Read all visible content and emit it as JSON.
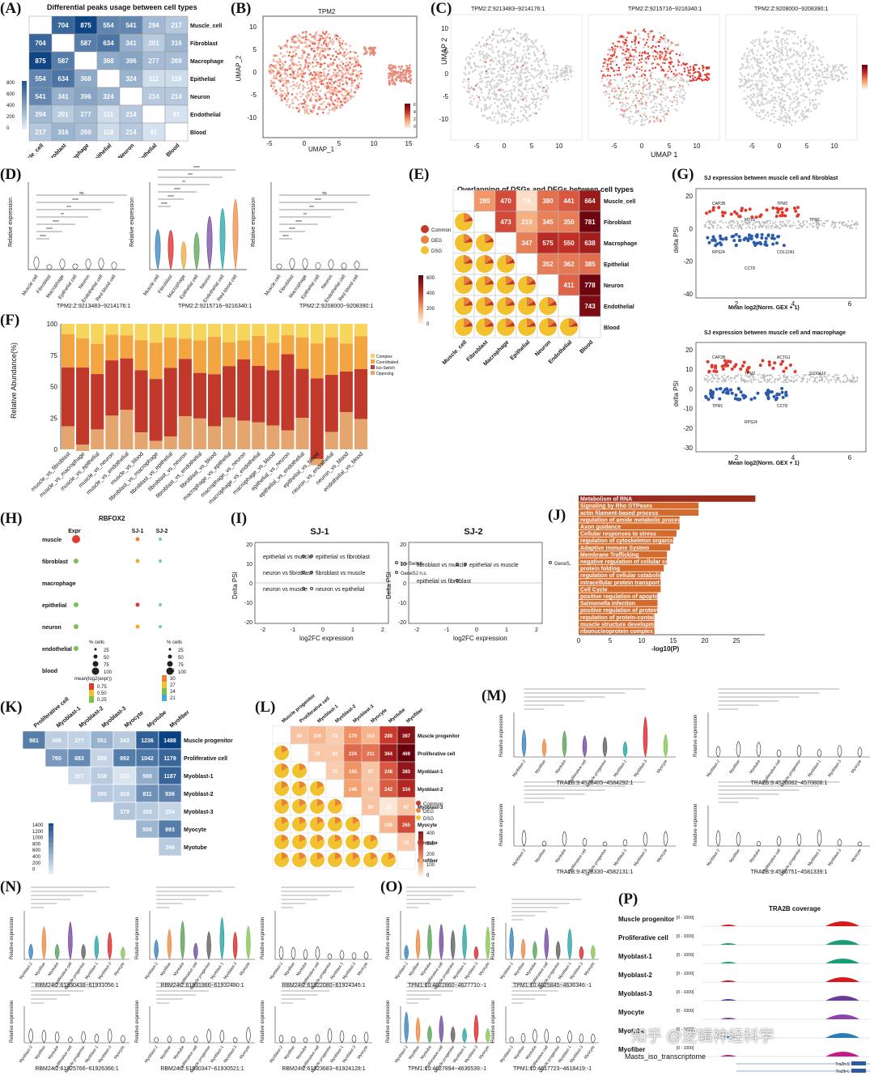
{
  "panels": {
    "A": {
      "label": "(A)",
      "title": "Differential peaks usage between cell types",
      "rows": [
        "Muscle_cell",
        "Fibroblast",
        "Macrophage",
        "Epithelial",
        "Neuron",
        "Endothelial",
        "Blood"
      ],
      "matrix": [
        [
          null,
          704,
          875,
          554,
          541,
          294,
          217
        ],
        [
          704,
          null,
          587,
          634,
          341,
          201,
          316
        ],
        [
          875,
          587,
          null,
          368,
          396,
          277,
          269
        ],
        [
          554,
          634,
          368,
          null,
          324,
          111,
          118
        ],
        [
          541,
          341,
          396,
          324,
          null,
          214,
          214
        ],
        [
          294,
          201,
          277,
          111,
          214,
          null,
          91
        ],
        [
          217,
          316,
          269,
          118,
          214,
          91,
          null
        ]
      ],
      "scale": [
        "800",
        "600",
        "400",
        "200",
        "0"
      ]
    },
    "B": {
      "label": "(B)",
      "title": "TPM2",
      "xlabel": "UMAP_1",
      "ylabel": "UMAP_2",
      "xticks": [
        "-5",
        "0",
        "5",
        "10",
        "15"
      ],
      "yticks": [
        "10",
        "5",
        "0",
        "-5",
        "-10"
      ],
      "scale": [
        "6",
        "4",
        "2",
        "0"
      ]
    },
    "C": {
      "label": "(C)",
      "titles": [
        "TPM2:Z:9213483~9214176:1",
        "TPM2:Z:9215716~9216340:1",
        "TPM2:Z:9208000~9208390:1"
      ],
      "xlabel": "UMAP 1",
      "ylabel": "UMAP 2",
      "xticks": [
        "-5",
        "0",
        "5",
        "10"
      ],
      "yticks": [
        "10",
        "5",
        "0",
        "-5",
        "-10"
      ],
      "scale": [
        "6",
        "4",
        "2",
        "0"
      ]
    },
    "D": {
      "label": "(D)",
      "ylabel": "Relative expression",
      "groups": [
        "Muscle cell",
        "Fibroblast",
        "Macrophage",
        "Epithelial cell",
        "Neuron",
        "Endothelial cell",
        "Red blood cell"
      ],
      "sig": [
        "****",
        "****",
        "****",
        "**",
        "***",
        "****",
        "ns"
      ],
      "subtitles": [
        "TPM2:Z:9213483~9214176:1",
        "TPM2:Z:9215716~9216340:1",
        "TPM2:Z:9208000~9208390:1"
      ]
    },
    "E": {
      "label": "(E)",
      "title": "Overlapping of DSGs and DEGs between cell types",
      "rows": [
        "Muscle_cell",
        "Fibroblast",
        "Macrophage",
        "Epithelial",
        "Neuron",
        "Endothelial",
        "Blood"
      ],
      "upper": [
        [
          null,
          289,
          470,
          74,
          380,
          441,
          664
        ],
        [
          null,
          null,
          473,
          219,
          345,
          350,
          781
        ],
        [
          null,
          null,
          null,
          347,
          575,
          550,
          638
        ],
        [
          null,
          null,
          null,
          null,
          352,
          362,
          385
        ],
        [
          null,
          null,
          null,
          null,
          null,
          411,
          778
        ],
        [
          null,
          null,
          null,
          null,
          null,
          null,
          743
        ],
        [
          null,
          null,
          null,
          null,
          null,
          null,
          null
        ]
      ],
      "legend": [
        "Common",
        "DEG",
        "DSG"
      ],
      "scale": [
        "600",
        "400",
        "200",
        "0"
      ]
    },
    "F": {
      "label": "(F)",
      "ylabel": "Relative Abundance(%)",
      "yticks": [
        "100",
        "75",
        "50",
        "25",
        "0"
      ],
      "legend": [
        "Complex",
        "Coordinated",
        "Iso-Switch",
        "Opposing"
      ],
      "categories": [
        "muscle_vs_fibroblast",
        "muscle_vs_macrophage",
        "muscle_vs_epithelial",
        "muscle_vs_neuron",
        "muscle_vs_endothelial",
        "muscle_vs_blood",
        "fibroblast_vs_macrophage",
        "fibroblast_vs_epithelial",
        "fibroblast_vs_neuron",
        "fibroblast_vs_endothelial",
        "fibroblast_vs_blood",
        "macrophage_vs_epithelial",
        "macrophage_vs_neuron",
        "macrophage_vs_endothelial",
        "macrophage_vs_blood",
        "epithelial_vs_neuron",
        "epithelial_vs_endothelial",
        "epithelial_vs_blood",
        "neuron_vs_endothelial",
        "neuron_vs_blood",
        "endothelial_vs_blood"
      ]
    },
    "G": {
      "label": "(G)",
      "title1": "SJ expression between muscle cell and fibroblast",
      "title2": "SJ expression between muscle cell and macrophage",
      "xlabel": "Mean log2(Norm. GEX + 1)",
      "ylabel": "delta PSI",
      "yticks1": [
        "20",
        "0",
        "-20",
        "-40"
      ],
      "yticks2": [
        "20",
        "10",
        "0",
        "-10",
        "-20",
        "-30"
      ],
      "xticks": [
        "2",
        "4",
        "6"
      ],
      "genes1": [
        "CAP2B",
        "MYL6",
        "TPM2",
        "TPM1",
        "RPS24",
        "CCT8",
        "COL12A1"
      ],
      "genes2": [
        "CAP2B",
        "TPM2",
        "ACTG1",
        "S100A10",
        "TPM1",
        "RPS24",
        "CCT8"
      ]
    },
    "H": {
      "label": "(H)",
      "title": "RBFOX2",
      "cols": [
        "Expr",
        "SJ-1",
        "SJ-2"
      ],
      "rows": [
        "muscle",
        "fibroblast",
        "macrophage",
        "epithelial",
        "neuron",
        "endothelial",
        "blood"
      ],
      "legend_cells": "% cells",
      "size_legend": [
        "25",
        "50",
        "75",
        "100"
      ],
      "color_legend_title": "mean(log2(expr))",
      "color_legend": [
        "0.75",
        "0.50",
        "0.25"
      ],
      "psi_title": "PSI",
      "psi_legend": [
        "30",
        "27",
        "24",
        "21"
      ]
    },
    "I": {
      "label": "(I)",
      "titles": [
        "SJ-1",
        "SJ-2"
      ],
      "xlabel": "log2FC expression",
      "ylabel": "Delta PSI",
      "yticks": [
        "20",
        "10",
        "0",
        "-10",
        "-20"
      ],
      "xticks": [
        "-2",
        "-1",
        "0",
        "1",
        "2"
      ],
      "annot1": [
        "epithelial vs muscle",
        "epithelial vs fibroblast",
        "neuron vs fibroblast",
        "fibroblast vs muscle",
        "neuron vs muscle",
        "neuron vs epithelial"
      ],
      "legend1": [
        "Iso-Switch",
        "GeneSJ n.s."
      ],
      "annot2": [
        "fibroblast vs muscle",
        "epithelial vs muscle",
        "epithelial vs fibroblast"
      ],
      "legend2": [
        "GeneSJ n.s."
      ]
    },
    "J": {
      "label": "(J)",
      "xlabel": "-log10(P)",
      "xticks": [
        "0",
        "5",
        "10",
        "15",
        "20",
        "25"
      ],
      "terms": [
        "Metabolism of RNA",
        "Signaling by Rho GTPases",
        "actin filament-based process",
        "regulation of amide metabolic process",
        "Axon guidance",
        "Cellular responses to stress",
        "regulation of cytoskeleton organization",
        "Adaptive Immune System",
        "Membrane Trafficking",
        "negative regulation of cellular component organization",
        "protein folding",
        "regulation of cellular catabolic process",
        "intracellular protein transport",
        "Cell Cycle",
        "positive regulation of apoptotic process",
        "Salmonella infection",
        "positive regulation of protein localization",
        "regulation of protein-containing complex assembly",
        "muscle structure development",
        "ribonucleoprotein complex biogenesis"
      ],
      "values": [
        28,
        19,
        19,
        16,
        16,
        15.5,
        15,
        14.5,
        14,
        14,
        13.5,
        13,
        13,
        13,
        12.5,
        12.5,
        12.5,
        12,
        12,
        12
      ]
    },
    "K": {
      "label": "(K)",
      "cols": [
        "Proliferative cell",
        "Myoblast-1",
        "Myoblast-2",
        "Myoblast-3",
        "Myocyte",
        "Myotube",
        "Myofiber"
      ],
      "rows": [
        "Muscle progenitor",
        "Proliferative cell",
        "Myoblast-1",
        "Myoblast-2",
        "Myoblast-3",
        "Myocyte",
        "Myotube"
      ],
      "matrix": [
        [
          981,
          306,
          277,
          551,
          343,
          1236,
          1488
        ],
        [
          null,
          760,
          883,
          258,
          992,
          1042,
          1179
        ],
        [
          null,
          null,
          207,
          338,
          122,
          590,
          1187
        ],
        [
          null,
          null,
          null,
          350,
          318,
          811,
          936
        ],
        [
          null,
          null,
          null,
          null,
          379,
          339,
          254
        ],
        [
          null,
          null,
          null,
          null,
          null,
          506,
          993
        ],
        [
          null,
          null,
          null,
          null,
          null,
          null,
          346
        ]
      ],
      "scale": [
        "1400",
        "1200",
        "1000",
        "800",
        "600",
        "400",
        "200",
        "0"
      ]
    },
    "L": {
      "label": "(L)",
      "cols": [
        "Muscle progenitor",
        "Proliferative cell",
        "Myoblast-1",
        "Myoblast-2",
        "Myoblast-3",
        "Myocyte",
        "Myotube",
        "Myofiber"
      ],
      "rows": [
        "Muscle progenitor",
        "Proliferative cell",
        "Myoblast-1",
        "Myoblast-2",
        "Myoblast-3",
        "Myocyte",
        "Myotube",
        "Myofiber"
      ],
      "upper": [
        [
          null,
          90,
          109,
          72,
          170,
          114,
          289,
          397
        ],
        [
          null,
          null,
          79,
          83,
          224,
          211,
          364,
          469
        ],
        [
          null,
          null,
          null,
          72,
          165,
          87,
          248,
          383
        ],
        [
          null,
          null,
          null,
          null,
          146,
          90,
          242,
          334
        ],
        [
          null,
          null,
          null,
          null,
          null,
          90,
          23,
          87
        ],
        [
          null,
          null,
          null,
          null,
          null,
          null,
          109,
          265
        ],
        [
          null,
          null,
          null,
          null,
          null,
          null,
          null,
          76
        ],
        [
          null,
          null,
          null,
          null,
          null,
          null,
          null,
          null
        ]
      ],
      "legend": [
        "Common",
        "DEG",
        "DSG"
      ],
      "scale": [
        "400",
        "300",
        "200",
        "100",
        "0"
      ]
    },
    "M": {
      "label": "(M)",
      "ylabel": "Relative expression",
      "groups": [
        "Myoblast-2",
        "Myofiber",
        "Myotube",
        "Proliferative cell",
        "Muscle progenitor",
        "Myoblast-1",
        "Myoblast-3",
        "Myocyte"
      ],
      "subtitles": [
        "TRA2B:9:4578405~4584292:1",
        "TRA2B:9:4570082~4570808:1",
        "TRA2B:9:4578330~4582131:1",
        "TRA2B:9:4580751~4581339:1"
      ]
    },
    "N": {
      "label": "(N)",
      "ylabel": "Relative expression",
      "subtitles": [
        "RBM24:2:61930438~61931056:1",
        "RBM24:2:61931966~61932480:1",
        "RBM24:2:61922080~61924345:1",
        "RBM24:2:61925766~61926366:1",
        "RBM24:2:61930347~61930521:1",
        "RBM24:2:61923683~61924128:1"
      ]
    },
    "O": {
      "label": "(O)",
      "ylabel": "Relative expression",
      "subtitles": [
        "TPM1:10:4622860~4627710:-1",
        "TPM1:10:4625845~4636346:-1",
        "TPM1:10:4627894~4636539:-1",
        "TPM1:10:4617723~4618419:-1"
      ]
    },
    "P": {
      "label": "(P)",
      "title": "TRA2B coverage",
      "tracks": [
        "Muscle progenitor",
        "Proliferative cell",
        "Myoblast-1",
        "Myoblast-2",
        "Myoblast-3",
        "Myocyte",
        "Myotube",
        "Myofiber"
      ],
      "range": "[0 - 1000]",
      "bottom": "Masts_iso_transcriptome",
      "iso": [
        "Tra2b-S",
        "Tra2b-L"
      ],
      "watermark": "知乎 @逻辑神经科学"
    }
  },
  "colors": {
    "blue": "#2166ac",
    "red": "#b2182b",
    "orange": "#e8843a",
    "yellow": "#f2c12e",
    "dark_red": "#8b1a1a"
  }
}
